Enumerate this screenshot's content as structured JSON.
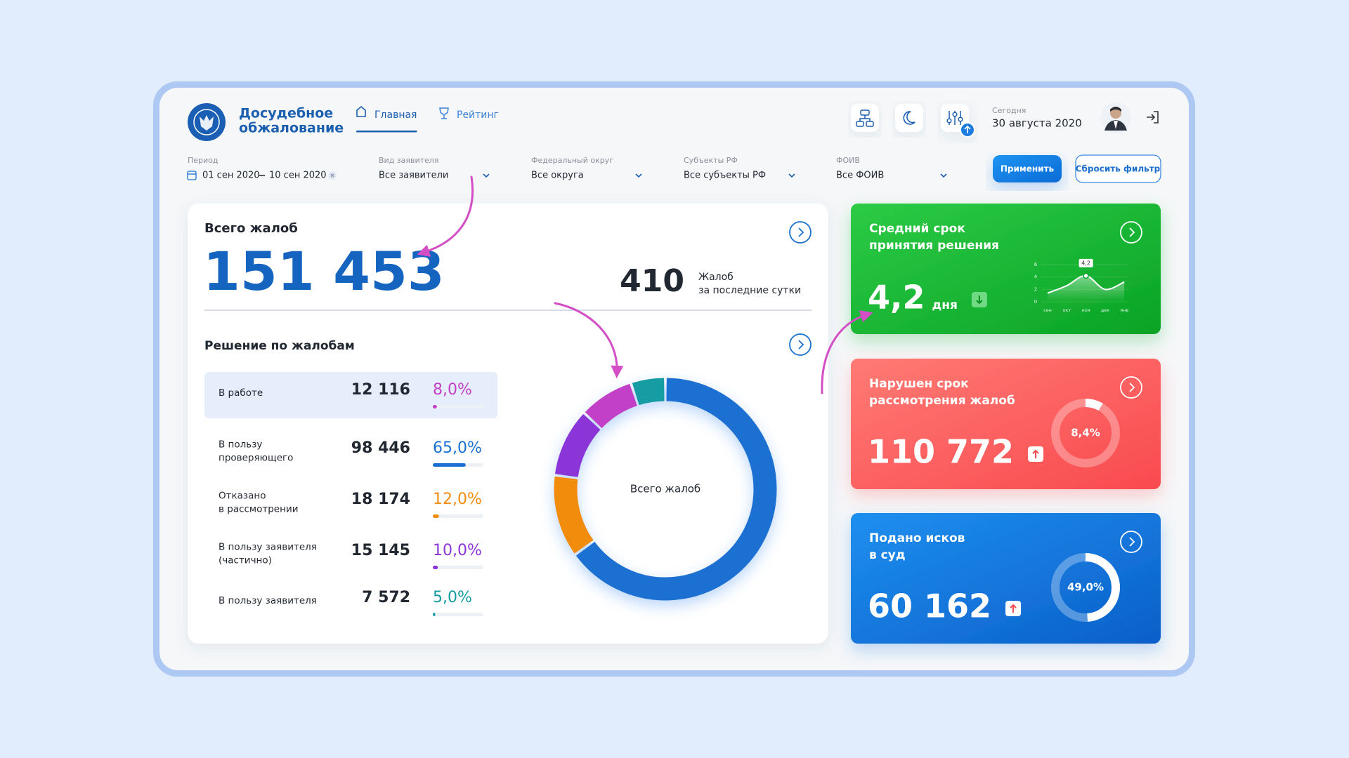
{
  "header": {
    "title_lines": [
      "Досудебное",
      "обжалование"
    ],
    "nav": [
      {
        "label": "Главная",
        "active": true
      },
      {
        "label": "Рейтинг",
        "active": false
      }
    ],
    "date_caption": "Сегодня",
    "date": "30 августа 2020"
  },
  "filters": [
    {
      "label": "Период",
      "from": "01 сен 2020",
      "to": "10 сен 2020"
    },
    {
      "label": "Вид заявителя",
      "value": "Все заявители"
    },
    {
      "label": "Федеральный округ",
      "value": "Все округа"
    },
    {
      "label": "Субъекты РФ",
      "value": "Все субъекты РФ"
    },
    {
      "label": "ФОИВ",
      "value": "Все ФОИВ"
    }
  ],
  "buttons": {
    "apply": "Применить",
    "reset": "Сбросить фильтр"
  },
  "total": {
    "title": "Всего жалоб",
    "value": "151 453",
    "daily_value": "410",
    "daily_caption": [
      "Жалоб",
      "за последние сутки"
    ]
  },
  "decisions": {
    "title": "Решение по жалобам",
    "center_label": "Всего жалоб",
    "rows": [
      {
        "label_lines": [
          "В работе"
        ],
        "count": "12 116",
        "share": 8.0,
        "share_label": "8,0%",
        "color": "#c23fc8",
        "highlighted": true
      },
      {
        "label_lines": [
          "В пользу",
          "проверяющего"
        ],
        "count": "98 446",
        "share": 65.0,
        "share_label": "65,0%",
        "color": "#1a70d2",
        "highlighted": false
      },
      {
        "label_lines": [
          "Отказано",
          "в рассмотрении"
        ],
        "count": "18 174",
        "share": 12.0,
        "share_label": "12,0%",
        "color": "#f28c0f",
        "highlighted": false
      },
      {
        "label_lines": [
          "В пользу заявителя",
          "(частично)"
        ],
        "count": "15 145",
        "share": 10.0,
        "share_label": "10,0%",
        "color": "#8b35d8",
        "highlighted": false
      },
      {
        "label_lines": [
          "В пользу заявителя"
        ],
        "count": "7 572",
        "share": 5.0,
        "share_label": "5,0%",
        "color": "#159ca3",
        "highlighted": false
      }
    ]
  },
  "cards": [
    {
      "title_lines": [
        "Средний срок",
        "принятия решения"
      ],
      "value": "4,2",
      "unit": "дня",
      "trend": "down",
      "chart": {
        "type": "line",
        "categories": [
          "сен",
          "окт",
          "ноя",
          "дек",
          "янв"
        ],
        "values": [
          1.4,
          2.6,
          4.2,
          2.0,
          3.2
        ],
        "value_labels": [
          null,
          null,
          "4,2",
          null,
          null
        ],
        "ylim": [
          0,
          6
        ],
        "yticks": [
          0,
          2,
          4,
          6
        ]
      }
    },
    {
      "title_lines": [
        "Нарушен срок",
        "рассмотрения жалоб"
      ],
      "value": "110 772",
      "trend": "up",
      "ring": 8.4,
      "ring_label": "8,4%"
    },
    {
      "title_lines": [
        "Подано исков",
        "в суд"
      ],
      "value": "60 162",
      "trend": "up",
      "ring": 49.0,
      "ring_label": "49,0%"
    }
  ]
}
